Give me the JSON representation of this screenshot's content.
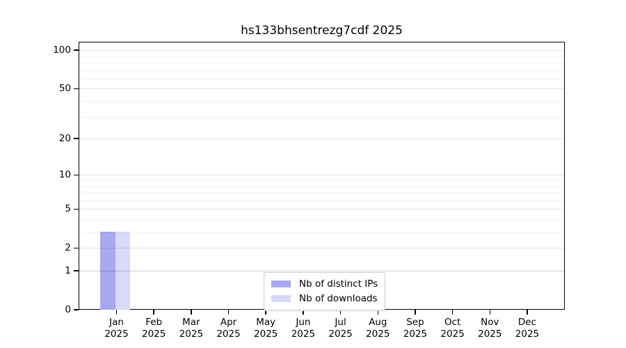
{
  "title": "hs133bhsentrezg7cdf 2025",
  "chart_data": {
    "type": "bar",
    "title": "hs133bhsentrezg7cdf 2025",
    "categories": [
      "Jan",
      "Feb",
      "Mar",
      "Apr",
      "May",
      "Jun",
      "Jul",
      "Aug",
      "Sep",
      "Oct",
      "Nov",
      "Dec"
    ],
    "x_tick_year": "2025",
    "series": [
      {
        "name": "Nb of distinct IPs",
        "color": "#a8a8f0",
        "values": [
          3,
          0,
          0,
          0,
          0,
          0,
          0,
          0,
          0,
          0,
          0,
          0
        ]
      },
      {
        "name": "Nb of downloads",
        "color": "#d9d9f8",
        "values": [
          3,
          0,
          0,
          0,
          0,
          0,
          0,
          0,
          0,
          0,
          0,
          0
        ]
      }
    ],
    "y_axis": {
      "scale": "log1p",
      "ticks": [
        0,
        1,
        2,
        5,
        10,
        20,
        50,
        100
      ],
      "minor_gridlines": [
        3,
        4,
        6,
        7,
        8,
        9,
        30,
        40,
        60,
        70,
        80,
        90
      ],
      "range": [
        0,
        116
      ]
    },
    "legend": {
      "position": "lower center"
    },
    "grid": "horizontal"
  }
}
